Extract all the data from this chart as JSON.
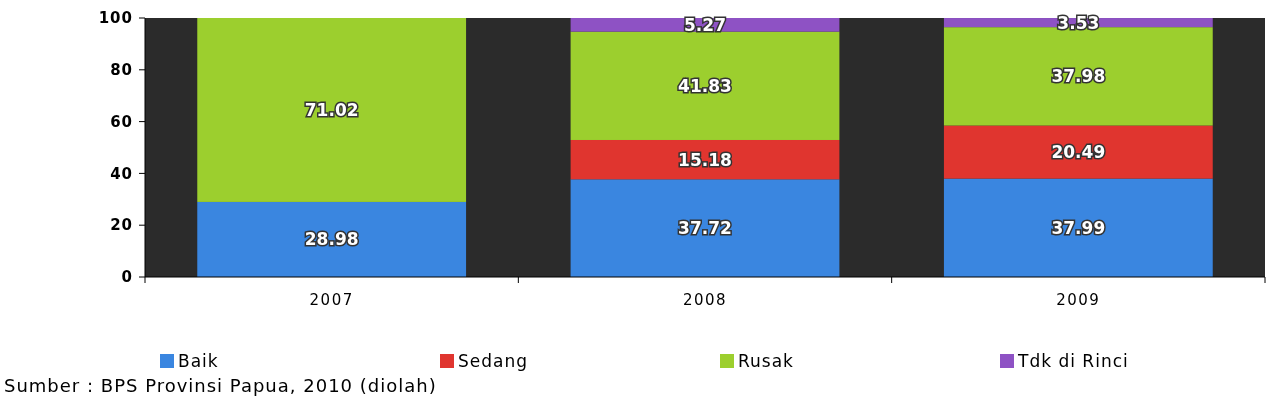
{
  "chart_data": {
    "type": "bar",
    "stacked": true,
    "categories": [
      "2007",
      "2008",
      "2009"
    ],
    "series": [
      {
        "name": "Baik",
        "color": "#3a86e0",
        "values": [
          28.98,
          37.72,
          37.99
        ]
      },
      {
        "name": "Sedang",
        "color": "#e0352f",
        "values": [
          null,
          15.18,
          20.49
        ]
      },
      {
        "name": "Rusak",
        "color": "#9ccf2e",
        "values": [
          71.02,
          41.83,
          37.98
        ]
      },
      {
        "name": "Tdk di Rinci",
        "color": "#8e52c4",
        "values": [
          null,
          5.27,
          3.53
        ]
      }
    ],
    "ylim": [
      0,
      100
    ],
    "yticks": [
      0,
      20,
      40,
      60,
      80,
      100
    ],
    "data_labels": true,
    "legend": "bottom",
    "annotations": [
      "Sumber : BPS Provinsi Papua, 2010 (diolah)"
    ]
  }
}
